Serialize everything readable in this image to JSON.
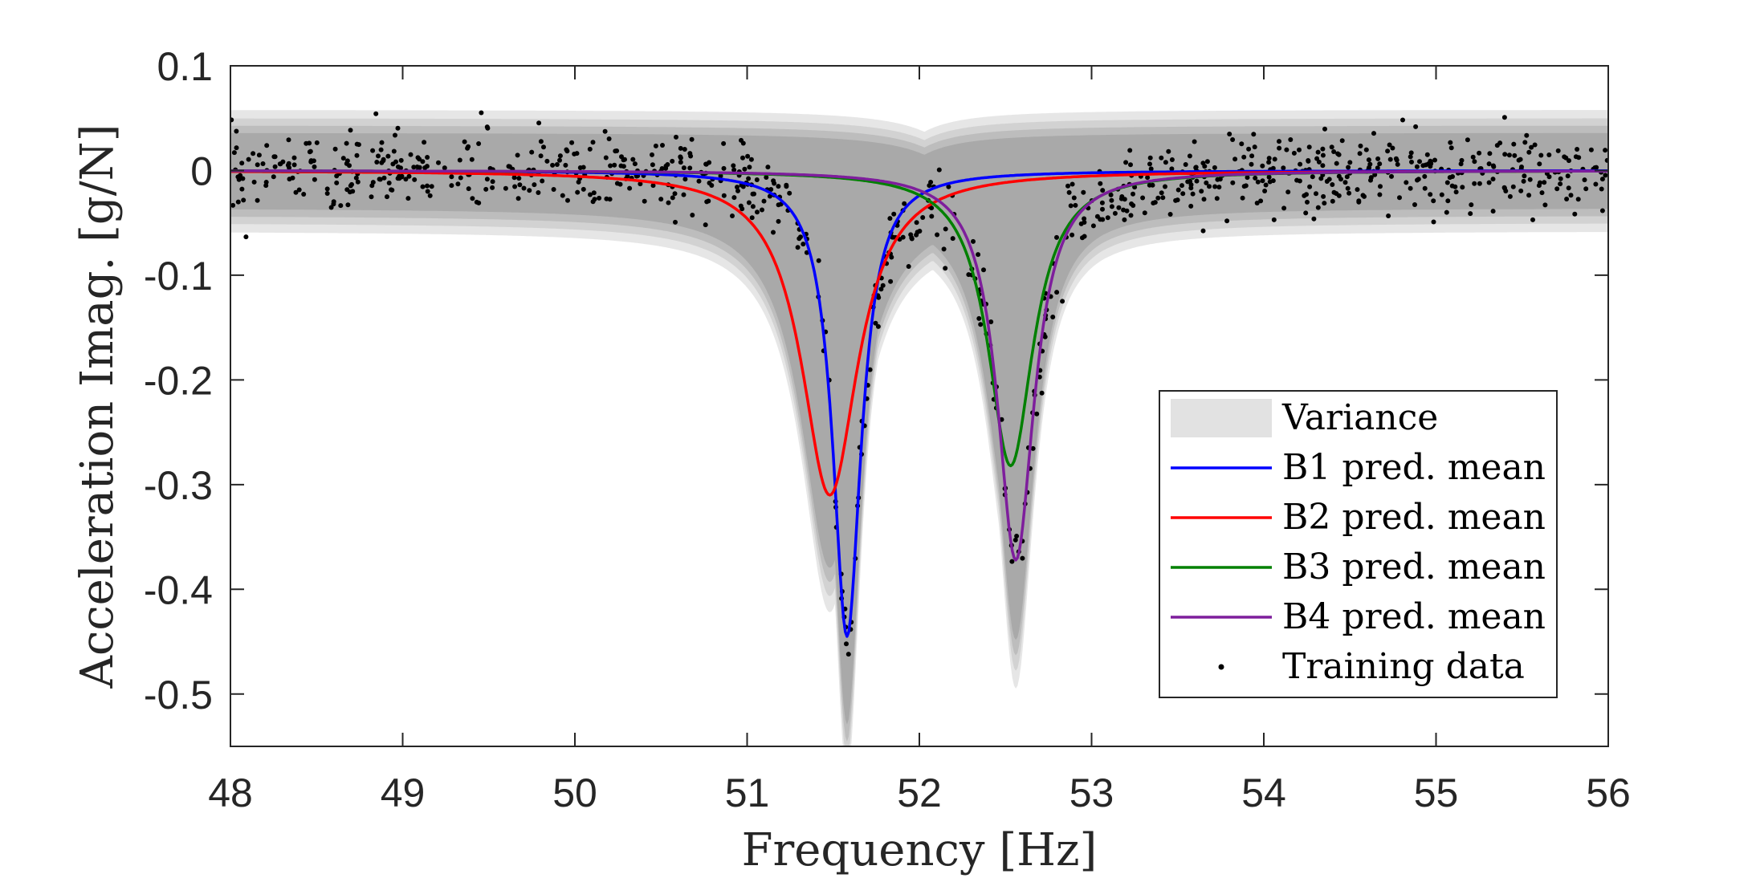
{
  "chart_data": {
    "type": "line",
    "xlabel": "Frequency [Hz]",
    "ylabel": "Acceleration Imag. [g/N]",
    "xlim": [
      48,
      56
    ],
    "ylim": [
      -0.55,
      0.1
    ],
    "xticks": [
      48,
      49,
      50,
      51,
      52,
      53,
      54,
      55,
      56
    ],
    "xtick_labels": [
      "48",
      "49",
      "50",
      "51",
      "52",
      "53",
      "54",
      "55",
      "56"
    ],
    "yticks": [
      0.1,
      0,
      -0.1,
      -0.2,
      -0.3,
      -0.4,
      -0.5
    ],
    "ytick_labels": [
      "0.1",
      "0",
      "-0.1",
      "-0.2",
      "-0.3",
      "-0.4",
      "-0.5"
    ],
    "grid": false,
    "legend_position": "bottom-right",
    "legend": [
      {
        "label": "Variance",
        "kind": "band",
        "color": "#e2e2e2"
      },
      {
        "label": "B1 pred. mean",
        "kind": "line",
        "color": "#0000ff"
      },
      {
        "label": "B2 pred. mean",
        "kind": "line",
        "color": "#ff0000"
      },
      {
        "label": "B3 pred. mean",
        "kind": "line",
        "color": "#008000"
      },
      {
        "label": "B4 pred. mean",
        "kind": "line",
        "color": "#7e1e9c"
      },
      {
        "label": "Training data",
        "kind": "marker",
        "color": "#000000"
      }
    ],
    "series": [
      {
        "name": "B1 pred. mean",
        "color": "#0000ff",
        "f0": 51.58,
        "gamma": 0.1,
        "peak": -0.445
      },
      {
        "name": "B2 pred. mean",
        "color": "#ff0000",
        "f0": 51.48,
        "gamma": 0.2,
        "peak": -0.31
      },
      {
        "name": "B3 pred. mean",
        "color": "#008000",
        "f0": 52.53,
        "gamma": 0.16,
        "peak": -0.282
      },
      {
        "name": "B4 pred. mean",
        "color": "#7e1e9c",
        "f0": 52.56,
        "gamma": 0.13,
        "peak": -0.372
      }
    ],
    "variance_bands": [
      {
        "color": "#e6e6e6",
        "halfwidth": 0.058
      },
      {
        "color": "#d2d2d2",
        "halfwidth": 0.05
      },
      {
        "color": "#bdbdbd",
        "halfwidth": 0.043
      },
      {
        "color": "#a9a9a9",
        "halfwidth": 0.036
      }
    ],
    "training_data": {
      "count": 900,
      "x_range": [
        48,
        56
      ],
      "noise_std": 0.018,
      "peaks": [
        {
          "f0": 51.58,
          "gamma": 0.1,
          "peak": -0.445
        },
        {
          "f0": 52.56,
          "gamma": 0.13,
          "peak": -0.372
        }
      ]
    }
  }
}
